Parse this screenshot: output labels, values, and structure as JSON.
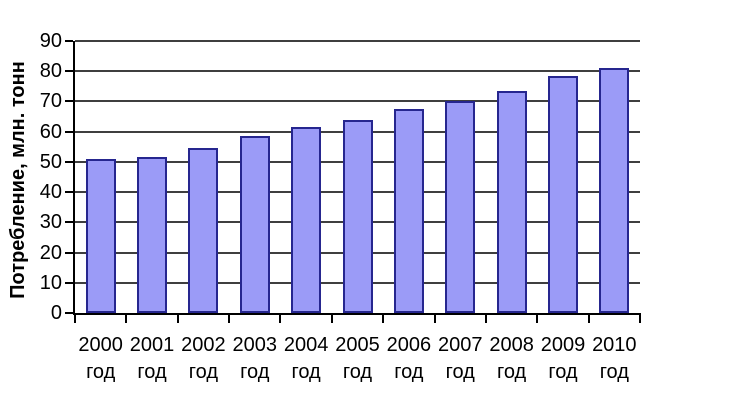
{
  "chart_data": {
    "type": "bar",
    "title": "",
    "ylabel": "Потребление, млн. тонн",
    "xlabel": "",
    "categories": [
      "2000",
      "2001",
      "2002",
      "2003",
      "2004",
      "2005",
      "2006",
      "2007",
      "2008",
      "2009",
      "2010"
    ],
    "category_suffix": "год",
    "values": [
      51,
      51.5,
      54.5,
      58.5,
      61.5,
      64,
      67.5,
      70,
      73.5,
      78.5,
      81
    ],
    "ylim": [
      0,
      90
    ],
    "yticks": [
      0,
      10,
      20,
      30,
      40,
      50,
      60,
      70,
      80,
      90
    ],
    "grid": true,
    "legend": "none",
    "colors": {
      "bar_fill": "#9B9BF7",
      "bar_border": "#26268F",
      "gridline": "#3F3F3F",
      "axis": "#000000",
      "text": "#000000",
      "background": "#FFFFFF"
    }
  }
}
